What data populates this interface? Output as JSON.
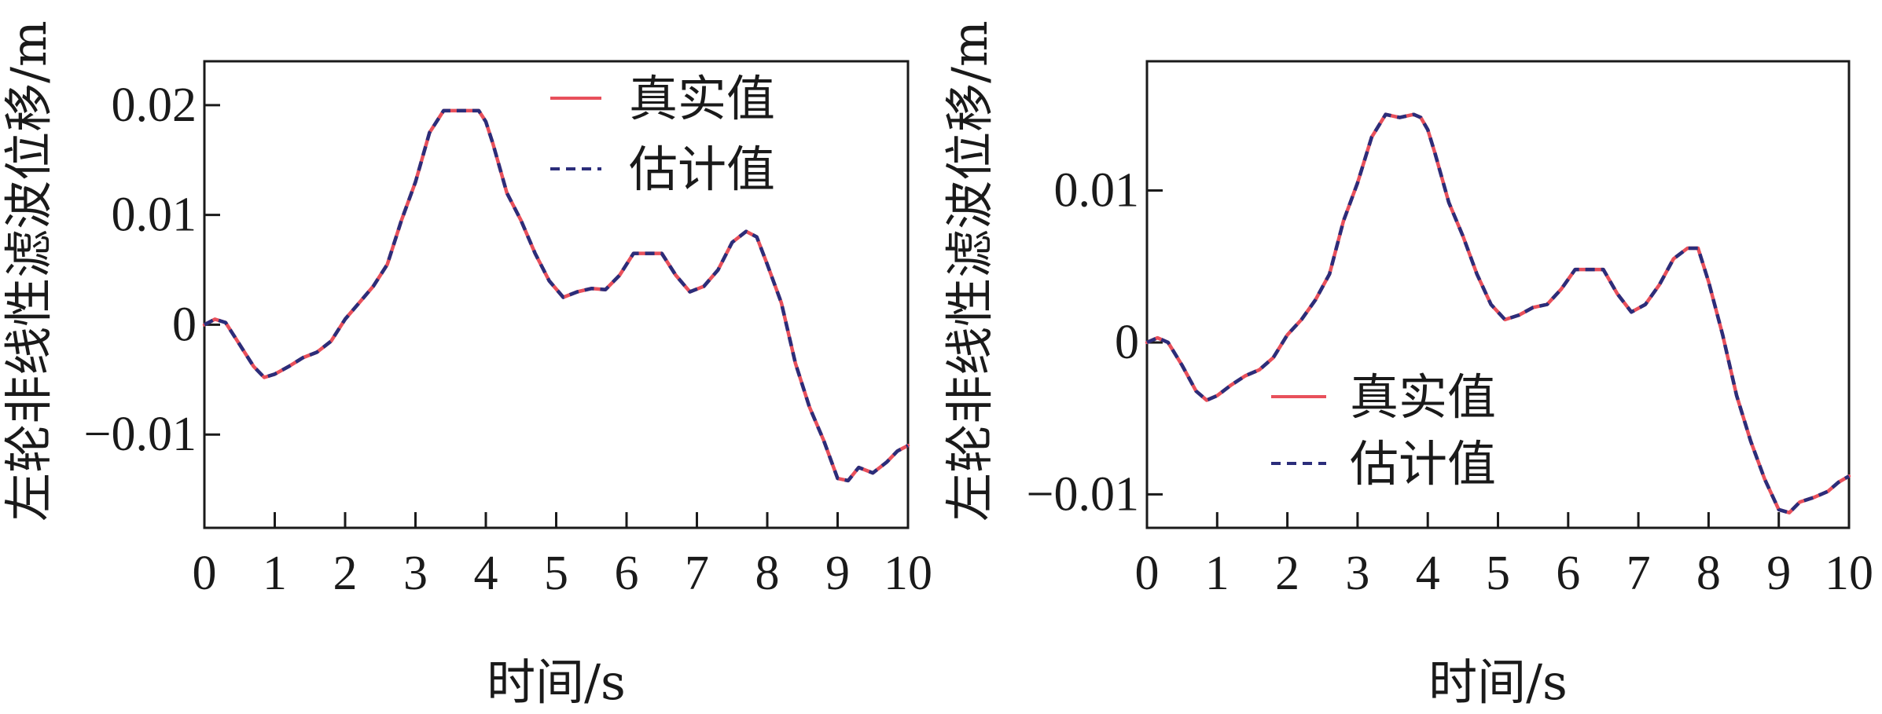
{
  "colors": {
    "true_line": "#e8505b",
    "estimate_line": "#2b2d7a",
    "axis": "#1a1a1a"
  },
  "chart_data": [
    {
      "type": "line",
      "xlabel": "时间/s",
      "ylabel": "左轮非线性滤波位移/m",
      "xlim": [
        0,
        10
      ],
      "ylim": [
        -0.0185,
        0.024
      ],
      "xticks": [
        "0",
        "1",
        "2",
        "3",
        "4",
        "5",
        "6",
        "7",
        "8",
        "9",
        "10"
      ],
      "yticks": [
        {
          "value": 0.02,
          "label": "0.02"
        },
        {
          "value": 0.01,
          "label": "0.01"
        },
        {
          "value": 0,
          "label": "0"
        },
        {
          "value": -0.01,
          "label": "−0.01"
        }
      ],
      "legend_position": "top-right",
      "series": [
        {
          "name": "真实值",
          "style": "solid"
        },
        {
          "name": "估计值",
          "style": "dashed"
        }
      ],
      "x": [
        0,
        0.15,
        0.3,
        0.5,
        0.7,
        0.85,
        1.0,
        1.2,
        1.4,
        1.6,
        1.8,
        2.0,
        2.2,
        2.4,
        2.6,
        2.8,
        3.0,
        3.2,
        3.4,
        3.6,
        3.8,
        3.9,
        4.0,
        4.1,
        4.3,
        4.5,
        4.7,
        4.9,
        5.1,
        5.3,
        5.5,
        5.7,
        5.9,
        6.1,
        6.3,
        6.5,
        6.7,
        6.9,
        7.1,
        7.3,
        7.5,
        7.7,
        7.85,
        8.0,
        8.2,
        8.4,
        8.6,
        8.8,
        9.0,
        9.15,
        9.3,
        9.5,
        9.7,
        9.85,
        10.0
      ],
      "values": [
        0,
        0.0005,
        0.0002,
        -0.0018,
        -0.0038,
        -0.0048,
        -0.0045,
        -0.0038,
        -0.003,
        -0.0025,
        -0.0015,
        0.0005,
        0.002,
        0.0035,
        0.0055,
        0.0095,
        0.013,
        0.0175,
        0.0195,
        0.0195,
        0.0195,
        0.0195,
        0.0185,
        0.0165,
        0.012,
        0.0095,
        0.0065,
        0.004,
        0.0025,
        0.003,
        0.0033,
        0.0032,
        0.0045,
        0.0065,
        0.0065,
        0.0065,
        0.0045,
        0.003,
        0.0035,
        0.005,
        0.0075,
        0.0085,
        0.008,
        0.0055,
        0.002,
        -0.0035,
        -0.0075,
        -0.0105,
        -0.014,
        -0.0142,
        -0.013,
        -0.0135,
        -0.0125,
        -0.0115,
        -0.011
      ]
    },
    {
      "type": "line",
      "xlabel": "时间/s",
      "ylabel": "左轮非线性滤波位移/m",
      "xlim": [
        0,
        10
      ],
      "ylim": [
        -0.0122,
        0.0185
      ],
      "xticks": [
        "0",
        "1",
        "2",
        "3",
        "4",
        "5",
        "6",
        "7",
        "8",
        "9",
        "10"
      ],
      "yticks": [
        {
          "value": 0.01,
          "label": "0.01"
        },
        {
          "value": 0,
          "label": "0"
        },
        {
          "value": -0.01,
          "label": "−0.01"
        }
      ],
      "legend_position": "bottom-right",
      "series": [
        {
          "name": "真实值",
          "style": "solid"
        },
        {
          "name": "估计值",
          "style": "dashed"
        }
      ],
      "x": [
        0,
        0.15,
        0.3,
        0.5,
        0.7,
        0.85,
        1.0,
        1.2,
        1.4,
        1.6,
        1.8,
        2.0,
        2.2,
        2.4,
        2.6,
        2.8,
        3.0,
        3.2,
        3.4,
        3.6,
        3.8,
        3.9,
        4.0,
        4.1,
        4.3,
        4.5,
        4.7,
        4.9,
        5.1,
        5.3,
        5.5,
        5.7,
        5.9,
        6.1,
        6.3,
        6.5,
        6.7,
        6.9,
        7.1,
        7.3,
        7.5,
        7.7,
        7.85,
        8.0,
        8.2,
        8.4,
        8.6,
        8.8,
        9.0,
        9.15,
        9.3,
        9.5,
        9.7,
        9.85,
        10.0
      ],
      "values": [
        0,
        0.0003,
        0,
        -0.0015,
        -0.0032,
        -0.0038,
        -0.0035,
        -0.0028,
        -0.0022,
        -0.0018,
        -0.001,
        0.0005,
        0.0015,
        0.0028,
        0.0045,
        0.008,
        0.0105,
        0.0135,
        0.015,
        0.0148,
        0.015,
        0.0148,
        0.014,
        0.0125,
        0.0092,
        0.007,
        0.0045,
        0.0025,
        0.0015,
        0.0018,
        0.0023,
        0.0025,
        0.0035,
        0.0048,
        0.0048,
        0.0048,
        0.0032,
        0.002,
        0.0025,
        0.0038,
        0.0055,
        0.0062,
        0.0062,
        0.004,
        0.0005,
        -0.0035,
        -0.0065,
        -0.009,
        -0.011,
        -0.0112,
        -0.0105,
        -0.0102,
        -0.0098,
        -0.0092,
        -0.0088
      ]
    }
  ]
}
